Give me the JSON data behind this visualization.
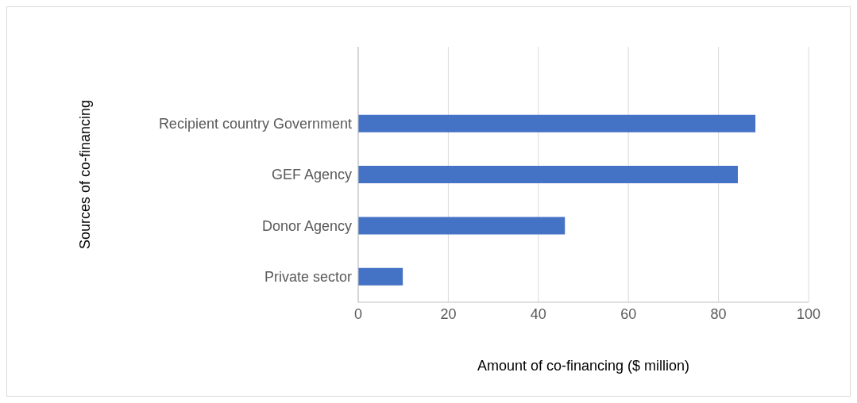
{
  "chart_data": {
    "type": "bar",
    "orientation": "horizontal",
    "xlabel": "Amount of co-financing ($ million)",
    "ylabel": "Sources of co-financing",
    "categories": [
      null,
      "Recipient country Government",
      "GEF Agency",
      "Donor Agency",
      "Private sector"
    ],
    "values": [
      null,
      88.2,
      84.3,
      45.9,
      9.9
    ],
    "color": "#4472c4",
    "xlim": [
      0,
      100
    ],
    "xticks": [
      0,
      20,
      40,
      60,
      80,
      100
    ],
    "grid": "x"
  }
}
